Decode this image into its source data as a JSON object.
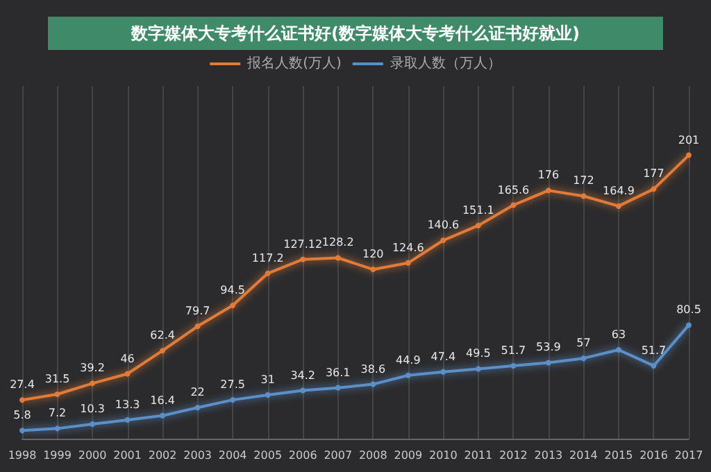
{
  "chart_data": {
    "type": "line",
    "title": "数字媒体大专考什么证书好(数字媒体大专考什么证书好就业)",
    "categories": [
      "1998",
      "1999",
      "2000",
      "2001",
      "2002",
      "2003",
      "2004",
      "2005",
      "2006",
      "2007",
      "2008",
      "2009",
      "2010",
      "2011",
      "2012",
      "2013",
      "2014",
      "2015",
      "2016",
      "2017"
    ],
    "series": [
      {
        "name": "报名人数(万人)",
        "color": "#e07b39",
        "values": [
          27.4,
          31.5,
          39.2,
          46,
          62.4,
          79.7,
          94.5,
          117.2,
          127.12,
          128.2,
          120,
          124.6,
          140.6,
          151.1,
          165.6,
          176,
          172,
          164.9,
          177,
          201
        ]
      },
      {
        "name": "录取人数（万人）",
        "color": "#5b8fc7",
        "values": [
          5.8,
          7.2,
          10.3,
          13.3,
          16.4,
          22,
          27.5,
          31,
          34.2,
          36.1,
          38.6,
          44.9,
          47.4,
          49.5,
          51.7,
          53.9,
          57,
          63,
          51.7,
          80.5
        ]
      }
    ],
    "data_labels": true,
    "legend": "top",
    "grid": "x",
    "marker": "circle",
    "line_style": "solid"
  }
}
